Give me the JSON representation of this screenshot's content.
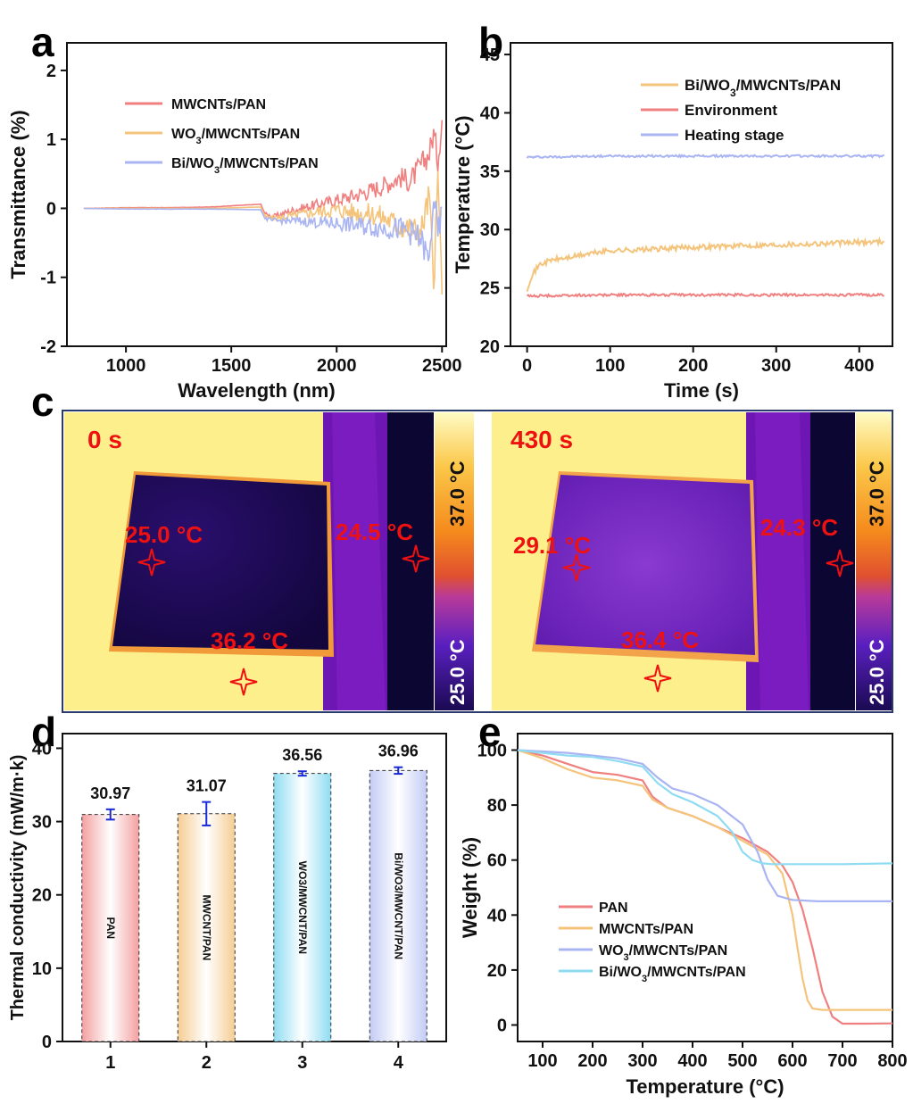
{
  "colors": {
    "red": "#f08080",
    "orange": "#f4c47c",
    "blue": "#a9b4f2",
    "cyan": "#8fdcf2",
    "yellow_bg": "#fdf08c",
    "dark_pad": "#1a0a52",
    "purple_stage": "#6e16b4",
    "label_red": "#ee1111"
  },
  "panels": {
    "a": "a",
    "b": "b",
    "c": "c",
    "d": "d",
    "e": "e"
  },
  "chart_data": [
    {
      "id": "a",
      "type": "line",
      "title": "",
      "xlabel": "Wavelength (nm)",
      "ylabel": "Transmittance (%)",
      "xlim": [
        720,
        2520
      ],
      "ylim": [
        -2,
        2.4
      ],
      "xticks": [
        1000,
        1500,
        2000,
        2500
      ],
      "yticks": [
        -2,
        -1,
        0,
        1,
        2
      ],
      "legend_position": "upper-left",
      "series": [
        {
          "name": "MWCNTs/PAN",
          "legend": [
            "MWCNTs/PAN"
          ],
          "color": "red",
          "x": [
            800,
            1000,
            1200,
            1400,
            1640,
            1660,
            1700,
            1800,
            1900,
            2000,
            2100,
            2200,
            2300,
            2350,
            2400,
            2440,
            2460,
            2480,
            2500
          ],
          "y": [
            0.0,
            0.01,
            0.01,
            0.02,
            0.06,
            -0.08,
            -0.12,
            -0.02,
            0.05,
            0.12,
            0.2,
            0.3,
            0.45,
            0.4,
            0.62,
            0.8,
            1.1,
            0.7,
            1.3
          ]
        },
        {
          "name": "WO3/MWCNTs/PAN",
          "legend": [
            "WO",
            "3",
            "/MWCNTs/PAN"
          ],
          "color": "orange",
          "x": [
            800,
            1000,
            1200,
            1400,
            1640,
            1660,
            1700,
            1800,
            1900,
            2000,
            2100,
            2200,
            2300,
            2350,
            2400,
            2440,
            2460,
            2480,
            2500
          ],
          "y": [
            0.0,
            0.0,
            0.0,
            0.0,
            0.02,
            -0.12,
            -0.15,
            -0.1,
            -0.05,
            -0.02,
            -0.06,
            -0.1,
            -0.25,
            -0.3,
            -0.35,
            0.2,
            -1.15,
            0.4,
            -1.05
          ]
        },
        {
          "name": "Bi/WO3/MWCNTs/PAN",
          "legend": [
            "Bi/WO",
            "3",
            "/MWCNTs/PAN"
          ],
          "color": "blue",
          "x": [
            800,
            1000,
            1200,
            1400,
            1640,
            1660,
            1700,
            1800,
            1900,
            2000,
            2100,
            2200,
            2300,
            2350,
            2400,
            2440,
            2460,
            2480,
            2500
          ],
          "y": [
            0.0,
            -0.01,
            -0.01,
            -0.01,
            -0.02,
            -0.15,
            -0.18,
            -0.18,
            -0.2,
            -0.22,
            -0.25,
            -0.28,
            -0.3,
            -0.35,
            -0.45,
            -0.8,
            0.2,
            -0.4,
            -0.1
          ]
        }
      ]
    },
    {
      "id": "b",
      "type": "line",
      "title": "",
      "xlabel": "Time (s)",
      "ylabel": "Temperature (°C)",
      "xlim": [
        -20,
        440
      ],
      "ylim": [
        20,
        46
      ],
      "xticks": [
        0,
        100,
        200,
        300,
        400
      ],
      "yticks": [
        20,
        25,
        30,
        35,
        40,
        45
      ],
      "legend_position": "top-right",
      "series": [
        {
          "name": "Bi/WO3/MWCNTs/PAN",
          "legend": [
            "Bi/WO",
            "3",
            "/MWCNTs/PAN"
          ],
          "color": "orange",
          "x": [
            0,
            5,
            15,
            30,
            50,
            80,
            100,
            150,
            200,
            250,
            300,
            350,
            400,
            430
          ],
          "y": [
            24.9,
            26.0,
            27.0,
            27.4,
            27.6,
            28.0,
            28.2,
            28.3,
            28.5,
            28.6,
            28.7,
            28.8,
            28.9,
            29.0
          ]
        },
        {
          "name": "Environment",
          "legend": [
            "Environment"
          ],
          "color": "red",
          "x": [
            0,
            100,
            200,
            300,
            400,
            430
          ],
          "y": [
            24.3,
            24.4,
            24.4,
            24.4,
            24.4,
            24.4
          ]
        },
        {
          "name": "Heating stage",
          "legend": [
            "Heating stage"
          ],
          "color": "blue",
          "x": [
            0,
            100,
            200,
            300,
            400,
            430
          ],
          "y": [
            36.2,
            36.3,
            36.3,
            36.3,
            36.3,
            36.3
          ]
        }
      ]
    },
    {
      "id": "d",
      "type": "bar",
      "title": "",
      "xlabel": "",
      "ylabel": "Thermal conductivity (mW/m·k)",
      "ylim": [
        0,
        42
      ],
      "yticks": [
        0,
        10,
        20,
        30,
        40
      ],
      "categories": [
        "1",
        "2",
        "3",
        "4"
      ],
      "values": [
        30.97,
        31.07,
        36.56,
        36.96
      ],
      "errors": [
        0.7,
        1.6,
        0.3,
        0.45
      ],
      "value_labels": [
        "30.97",
        "31.07",
        "36.56",
        "36.96"
      ],
      "bar_labels": [
        "PAN",
        "MWCNT/PAN",
        "WO3/MWCNT/PAN",
        "Bi/WO3/MWCNT/PAN"
      ],
      "bar_colors": [
        "red",
        "orange",
        "cyan",
        "blue"
      ]
    },
    {
      "id": "e",
      "type": "line",
      "title": "",
      "xlabel": "Temperature (°C)",
      "ylabel": "Weight (%)",
      "xlim": [
        50,
        800
      ],
      "ylim": [
        -6,
        106
      ],
      "xticks": [
        100,
        200,
        300,
        400,
        500,
        600,
        700,
        800
      ],
      "yticks": [
        0,
        20,
        40,
        60,
        80,
        100
      ],
      "legend_position": "bottom-left",
      "series": [
        {
          "name": "PAN",
          "legend": [
            "PAN"
          ],
          "color": "red",
          "x": [
            50,
            100,
            150,
            200,
            250,
            300,
            320,
            350,
            400,
            450,
            500,
            550,
            580,
            600,
            620,
            640,
            660,
            680,
            700,
            750,
            800
          ],
          "y": [
            100,
            98,
            95,
            92,
            91,
            89,
            83,
            79,
            76,
            72,
            68,
            63,
            58,
            52,
            42,
            28,
            12,
            3,
            0.5,
            0.5,
            0.6
          ]
        },
        {
          "name": "MWCNTs/PAN",
          "legend": [
            "MWCNTs/PAN"
          ],
          "color": "orange",
          "x": [
            50,
            100,
            150,
            200,
            250,
            300,
            320,
            350,
            400,
            450,
            500,
            550,
            580,
            600,
            610,
            620,
            630,
            640,
            660,
            700,
            800
          ],
          "y": [
            100,
            97,
            93,
            90,
            89,
            87,
            82,
            79,
            76,
            72,
            67,
            62,
            55,
            40,
            28,
            17,
            9,
            6,
            5.5,
            5.5,
            5.5
          ]
        },
        {
          "name": "WO3/MWCNTs/PAN",
          "legend": [
            "WO",
            "3",
            "/MWCNTs/PAN"
          ],
          "color": "blue",
          "x": [
            50,
            100,
            150,
            200,
            250,
            300,
            330,
            360,
            400,
            450,
            500,
            530,
            550,
            570,
            600,
            650,
            700,
            800
          ],
          "y": [
            100,
            99.5,
            99,
            98,
            97,
            95,
            90,
            86,
            84,
            80,
            73,
            63,
            53,
            47,
            45.5,
            45,
            45,
            45
          ]
        },
        {
          "name": "Bi/WO3/MWCNTs/PAN",
          "legend": [
            "Bi/WO",
            "3",
            "/MWCNTs/PAN"
          ],
          "color": "cyan",
          "x": [
            50,
            100,
            150,
            200,
            250,
            300,
            330,
            360,
            400,
            450,
            480,
            500,
            520,
            540,
            560,
            600,
            700,
            800
          ],
          "y": [
            100,
            99,
            98,
            97.5,
            96,
            94,
            88,
            84,
            81,
            76,
            70,
            63,
            60,
            58.8,
            58.5,
            58.5,
            58.5,
            58.8
          ]
        }
      ]
    }
  ],
  "thermal_images": [
    {
      "time": "0 s",
      "labels": [
        "25.0 °C",
        "24.5 °C",
        "36.2 °C"
      ],
      "scale_max": "37.0 °C",
      "scale_min": "25.0 °C"
    },
    {
      "time": "430 s",
      "labels": [
        "29.1 °C",
        "24.3 °C",
        "36.4 °C"
      ],
      "scale_max": "37.0 °C",
      "scale_min": "25.0 °C"
    }
  ]
}
